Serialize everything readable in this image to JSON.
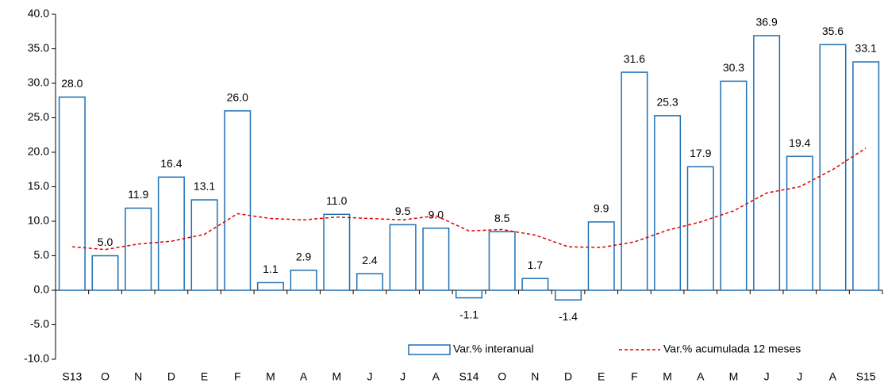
{
  "chart_data": {
    "type": "bar",
    "categories": [
      "S13",
      "O",
      "N",
      "D",
      "E",
      "F",
      "M",
      "A",
      "M",
      "J",
      "J",
      "A",
      "S14",
      "O",
      "N",
      "D",
      "E",
      "F",
      "M",
      "A",
      "M",
      "J",
      "J",
      "A",
      "S15"
    ],
    "series": [
      {
        "name": "Var.% interanual",
        "type": "bar",
        "color": "#1f6fb4",
        "values": [
          28.0,
          5.0,
          11.9,
          16.4,
          13.1,
          26.0,
          1.1,
          2.9,
          11.0,
          2.4,
          9.5,
          9.0,
          -1.1,
          8.5,
          1.7,
          -1.4,
          9.9,
          31.6,
          25.3,
          17.9,
          30.3,
          36.9,
          19.4,
          35.6,
          33.1
        ],
        "value_labels": [
          "28.0",
          "5.0",
          "11.9",
          "16.4",
          "13.1",
          "26.0",
          "1.1",
          "2.9",
          "11.0",
          "2.4",
          "9.5",
          "9.0",
          "-1.1",
          "8.5",
          "1.7",
          "-1.4",
          "9.9",
          "31.6",
          "25.3",
          "17.9",
          "30.3",
          "36.9",
          "19.4",
          "35.6",
          "33.1"
        ]
      },
      {
        "name": "Var.% acumulada 12 meses",
        "type": "line",
        "color": "#e00000",
        "values": [
          6.3,
          5.9,
          6.7,
          7.1,
          8.1,
          11.1,
          10.4,
          10.2,
          10.6,
          10.4,
          10.2,
          10.8,
          8.6,
          8.8,
          8.0,
          6.3,
          6.2,
          7.0,
          8.7,
          9.9,
          11.5,
          14.1,
          15.0,
          17.5,
          20.6
        ]
      }
    ],
    "ylim": [
      -10,
      40
    ],
    "yticks": [
      {
        "value": -10,
        "label": "-10.0"
      },
      {
        "value": -5,
        "label": "-5.0"
      },
      {
        "value": 0,
        "label": "0.0"
      },
      {
        "value": 5,
        "label": "5.0"
      },
      {
        "value": 10,
        "label": "10.0"
      },
      {
        "value": 15,
        "label": "15.0"
      },
      {
        "value": 20,
        "label": "20.0"
      },
      {
        "value": 25,
        "label": "25.0"
      },
      {
        "value": 30,
        "label": "30.0"
      },
      {
        "value": 35,
        "label": "35.0"
      },
      {
        "value": 40,
        "label": "40.0"
      }
    ],
    "legend": "bottom-right"
  }
}
